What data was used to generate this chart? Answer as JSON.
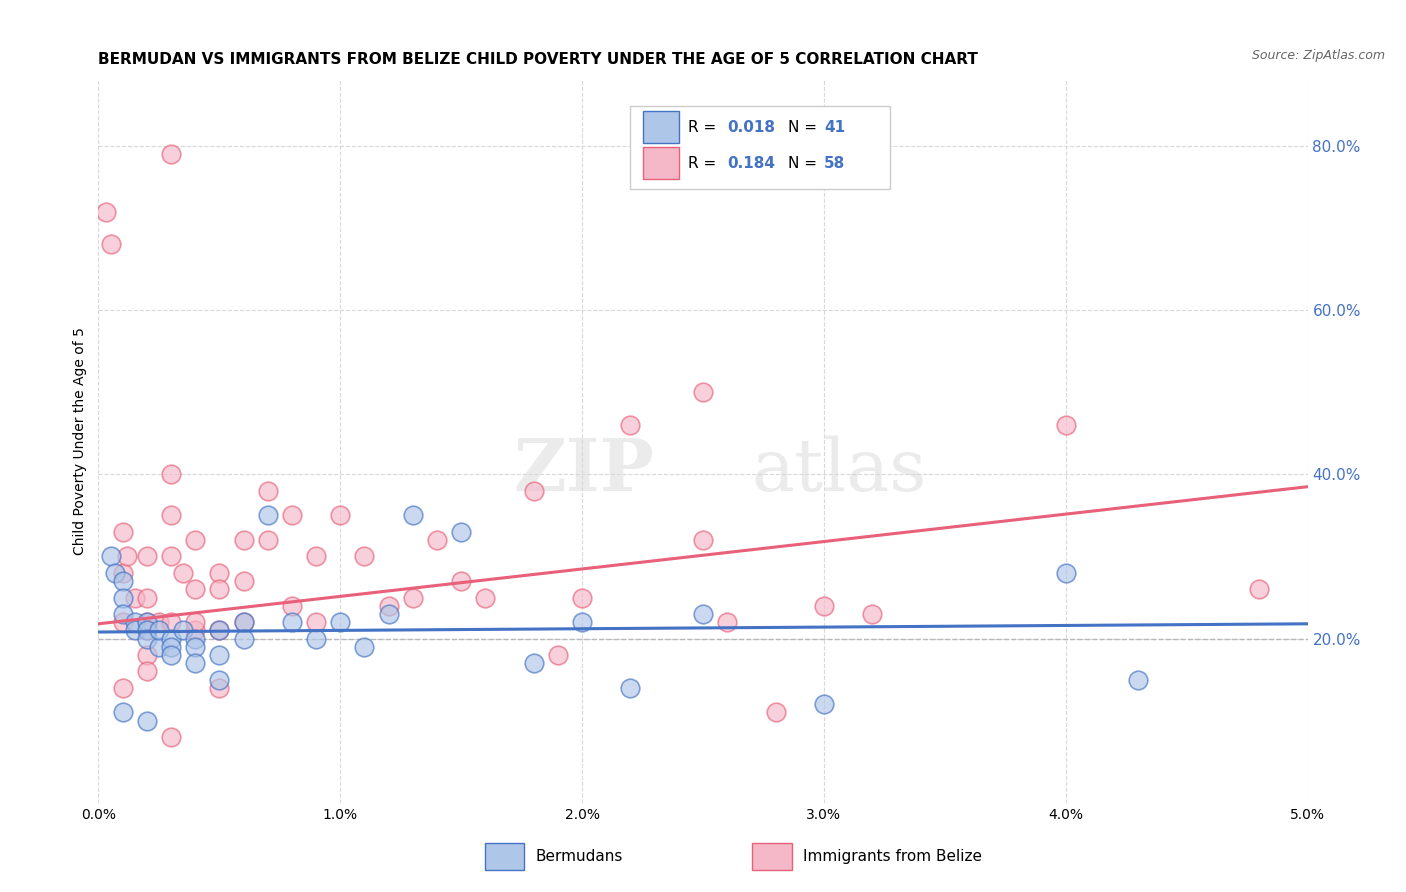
{
  "title": "BERMUDAN VS IMMIGRANTS FROM BELIZE CHILD POVERTY UNDER THE AGE OF 5 CORRELATION CHART",
  "source": "Source: ZipAtlas.com",
  "ylabel": "Child Poverty Under the Age of 5",
  "xlim": [
    0.0,
    0.05
  ],
  "ylim": [
    0.0,
    0.88
  ],
  "right_yticks": [
    0.2,
    0.4,
    0.6,
    0.8
  ],
  "right_yticklabels": [
    "20.0%",
    "40.0%",
    "60.0%",
    "80.0%"
  ],
  "xticks": [
    0.0,
    0.01,
    0.02,
    0.03,
    0.04,
    0.05
  ],
  "xticklabels": [
    "0.0%",
    "1.0%",
    "2.0%",
    "3.0%",
    "4.0%",
    "5.0%"
  ],
  "blue_scatter_x": [
    0.0005,
    0.0007,
    0.001,
    0.001,
    0.001,
    0.0015,
    0.0015,
    0.002,
    0.002,
    0.002,
    0.0025,
    0.0025,
    0.003,
    0.003,
    0.003,
    0.0035,
    0.004,
    0.004,
    0.004,
    0.005,
    0.005,
    0.005,
    0.006,
    0.006,
    0.007,
    0.008,
    0.009,
    0.01,
    0.011,
    0.012,
    0.013,
    0.015,
    0.018,
    0.02,
    0.022,
    0.025,
    0.03,
    0.04,
    0.043,
    0.001,
    0.002
  ],
  "blue_scatter_y": [
    0.3,
    0.28,
    0.27,
    0.25,
    0.23,
    0.22,
    0.21,
    0.22,
    0.21,
    0.2,
    0.19,
    0.21,
    0.2,
    0.19,
    0.18,
    0.21,
    0.2,
    0.19,
    0.17,
    0.21,
    0.18,
    0.15,
    0.22,
    0.2,
    0.35,
    0.22,
    0.2,
    0.22,
    0.19,
    0.23,
    0.35,
    0.33,
    0.17,
    0.22,
    0.14,
    0.23,
    0.12,
    0.28,
    0.15,
    0.11,
    0.1
  ],
  "pink_scatter_x": [
    0.0003,
    0.0005,
    0.001,
    0.001,
    0.001,
    0.0012,
    0.0015,
    0.002,
    0.002,
    0.002,
    0.002,
    0.002,
    0.0025,
    0.003,
    0.003,
    0.003,
    0.003,
    0.0035,
    0.004,
    0.004,
    0.004,
    0.004,
    0.005,
    0.005,
    0.005,
    0.006,
    0.006,
    0.006,
    0.007,
    0.007,
    0.008,
    0.008,
    0.009,
    0.009,
    0.01,
    0.011,
    0.012,
    0.013,
    0.014,
    0.015,
    0.016,
    0.018,
    0.019,
    0.02,
    0.022,
    0.025,
    0.026,
    0.028,
    0.03,
    0.032,
    0.001,
    0.003,
    0.025,
    0.04,
    0.048,
    0.003,
    0.002,
    0.005
  ],
  "pink_scatter_y": [
    0.72,
    0.68,
    0.33,
    0.28,
    0.22,
    0.3,
    0.25,
    0.3,
    0.25,
    0.22,
    0.21,
    0.18,
    0.22,
    0.4,
    0.35,
    0.3,
    0.22,
    0.28,
    0.26,
    0.21,
    0.32,
    0.22,
    0.28,
    0.26,
    0.21,
    0.32,
    0.27,
    0.22,
    0.38,
    0.32,
    0.35,
    0.24,
    0.3,
    0.22,
    0.35,
    0.3,
    0.24,
    0.25,
    0.32,
    0.27,
    0.25,
    0.38,
    0.18,
    0.25,
    0.46,
    0.32,
    0.22,
    0.11,
    0.24,
    0.23,
    0.14,
    0.79,
    0.5,
    0.46,
    0.26,
    0.08,
    0.16,
    0.14
  ],
  "blue_line_x": [
    0.0,
    0.05
  ],
  "blue_line_y": [
    0.208,
    0.218
  ],
  "pink_line_x": [
    0.0,
    0.05
  ],
  "pink_line_y": [
    0.218,
    0.385
  ],
  "dashed_line_y": 0.2,
  "blue_color": "#4472c4",
  "blue_scatter_color": "#aec6e8",
  "pink_color": "#e8607a",
  "pink_scatter_color": "#f4b8c8",
  "dashed_color": "#b8b8b8",
  "watermark_zip": "ZIP",
  "watermark_atlas": "atlas",
  "background_color": "#ffffff",
  "title_fontsize": 11,
  "source_fontsize": 9,
  "legend_R_blue": "0.018",
  "legend_N_blue": "41",
  "legend_R_pink": "0.184",
  "legend_N_pink": "58",
  "grid_color": "#d8d8d8"
}
